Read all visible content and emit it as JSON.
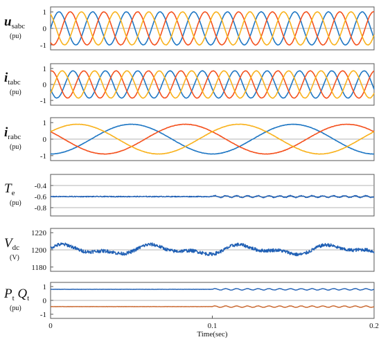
{
  "chart_data": [
    {
      "type": "line",
      "symbol_parts": [
        {
          "t": "u",
          "bold": true,
          "italic": true
        },
        {
          "t": "sabc",
          "sub": true
        }
      ],
      "unit": "(pu)",
      "xlim": [
        0,
        0.2
      ],
      "ylim": [
        -1.3,
        1.3
      ],
      "yticks": [
        {
          "v": 1,
          "t": "1"
        },
        {
          "v": 0,
          "t": "0"
        },
        {
          "v": -1,
          "t": "-1"
        }
      ],
      "zero_line": 0,
      "colors": [
        "#1f77c4",
        "#f4511e",
        "#f9b21c"
      ],
      "series": [
        {
          "kind": "sine",
          "amp": 1.0,
          "freq": 48,
          "phase": 0,
          "color": "#1f77c4"
        },
        {
          "kind": "sine",
          "amp": 1.0,
          "freq": 48,
          "phase": -120,
          "color": "#f4511e"
        },
        {
          "kind": "sine",
          "amp": 1.0,
          "freq": 48,
          "phase": 120,
          "color": "#f9b21c"
        }
      ]
    },
    {
      "type": "line",
      "symbol_parts": [
        {
          "t": "i",
          "bold": true,
          "italic": true
        },
        {
          "t": "tabc",
          "sub": true
        }
      ],
      "unit": "(pu)",
      "xlim": [
        0,
        0.2
      ],
      "ylim": [
        -1.3,
        1.3
      ],
      "yticks": [
        {
          "v": 1,
          "t": "1"
        },
        {
          "v": 0,
          "t": "0"
        },
        {
          "v": -1,
          "t": "-1"
        }
      ],
      "zero_line": 0,
      "series": [
        {
          "kind": "sine",
          "amp": 0.85,
          "freq": 50,
          "phase": 200,
          "color": "#1f77c4"
        },
        {
          "kind": "sine",
          "amp": 0.85,
          "freq": 50,
          "phase": 80,
          "color": "#f4511e"
        },
        {
          "kind": "sine",
          "amp": 0.85,
          "freq": 50,
          "phase": 320,
          "color": "#f9b21c"
        }
      ]
    },
    {
      "type": "line",
      "symbol_parts": [
        {
          "t": "i",
          "bold": true,
          "italic": true
        },
        {
          "t": "rabc",
          "sub": true
        }
      ],
      "unit": "(pu)",
      "xlim": [
        0,
        0.2
      ],
      "ylim": [
        -1.3,
        1.3
      ],
      "yticks": [
        {
          "v": 1,
          "t": "1"
        },
        {
          "v": 0,
          "t": "0"
        },
        {
          "v": -1,
          "t": "-1"
        }
      ],
      "zero_line": 0,
      "series": [
        {
          "kind": "sine",
          "amp": 0.9,
          "freq": 10,
          "phase": -90,
          "color": "#1f77c4"
        },
        {
          "kind": "sine",
          "amp": 0.9,
          "freq": 10,
          "phase": 150,
          "color": "#f4511e"
        },
        {
          "kind": "sine",
          "amp": 0.9,
          "freq": 10,
          "phase": 30,
          "color": "#f9b21c"
        }
      ]
    },
    {
      "type": "line",
      "symbol_parts": [
        {
          "t": "T",
          "italic": true
        },
        {
          "t": "e",
          "sub": true
        }
      ],
      "unit": "(pu)",
      "xlim": [
        0,
        0.2
      ],
      "ylim": [
        -0.95,
        -0.2
      ],
      "yticks": [
        {
          "v": -0.4,
          "t": "-0.4"
        },
        {
          "v": -0.6,
          "t": "-0.6"
        },
        {
          "v": -0.8,
          "t": "-0.8"
        }
      ],
      "zero_line": null,
      "series": [
        {
          "kind": "level",
          "base": -0.6,
          "noise": 0.008,
          "ripple_amp": 0.015,
          "ripple_start": 0.1,
          "ripple_freq": 150,
          "color": "#1f5fb4"
        }
      ]
    },
    {
      "type": "line",
      "symbol_parts": [
        {
          "t": "V",
          "italic": true
        },
        {
          "t": "dc",
          "sub": true
        }
      ],
      "unit": "(V)",
      "xlim": [
        0,
        0.2
      ],
      "ylim": [
        1175,
        1225
      ],
      "yticks": [
        {
          "v": 1220,
          "t": "1220"
        },
        {
          "v": 1200,
          "t": "1200"
        },
        {
          "v": 1180,
          "t": "1180"
        }
      ],
      "zero_line": 1200,
      "series": [
        {
          "kind": "vdc",
          "base": 1200,
          "color": "#1f5fb4"
        }
      ]
    },
    {
      "type": "line",
      "symbol_parts": [
        {
          "t": "P",
          "italic": true
        },
        {
          "t": "t",
          "sub": true
        },
        {
          "t": " Q",
          "italic": true
        },
        {
          "t": "t",
          "sub": true
        }
      ],
      "unit": "(pu)",
      "xlim": [
        0,
        0.2
      ],
      "ylim": [
        -1.3,
        1.3
      ],
      "yticks": [
        {
          "v": 1,
          "t": "1"
        },
        {
          "v": 0,
          "t": "0"
        },
        {
          "v": -1,
          "t": "-1"
        }
      ],
      "zero_line": 0,
      "series": [
        {
          "kind": "level",
          "base": 0.8,
          "noise": 0.01,
          "ripple_amp": 0.05,
          "ripple_start": 0.1,
          "ripple_freq": 150,
          "color": "#1f5fb4"
        },
        {
          "kind": "level",
          "base": -0.45,
          "noise": 0.01,
          "ripple_amp": 0.05,
          "ripple_start": 0.1,
          "ripple_freq": 150,
          "color": "#c8642a"
        }
      ]
    }
  ],
  "x_axis": {
    "ticks": [
      {
        "v": 0,
        "t": "0"
      },
      {
        "v": 0.1,
        "t": "0.1"
      },
      {
        "v": 0.2,
        "t": "0.2"
      }
    ],
    "label": "Time(sec)"
  }
}
